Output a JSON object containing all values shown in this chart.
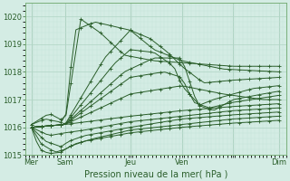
{
  "title": "Pression niveau de la mer( hPa )",
  "ylim": [
    1015,
    1020.5
  ],
  "yticks": [
    1015,
    1016,
    1017,
    1018,
    1019,
    1020
  ],
  "xlim": [
    0,
    132
  ],
  "xtick_positions": [
    3,
    20,
    53,
    79,
    105,
    128
  ],
  "xtick_labels": [
    "Mer",
    "Sam",
    "Jeu",
    "Ven",
    "",
    "Dim"
  ],
  "background_color": "#d4ece4",
  "grid_major_color": "#b0d4c4",
  "grid_minor_color": "#c4e4d8",
  "line_color": "#2a5e2a",
  "marker": "+",
  "markersize": 2.5,
  "linewidth": 0.7,
  "tick_fontsize": 6,
  "label_fontsize": 7
}
